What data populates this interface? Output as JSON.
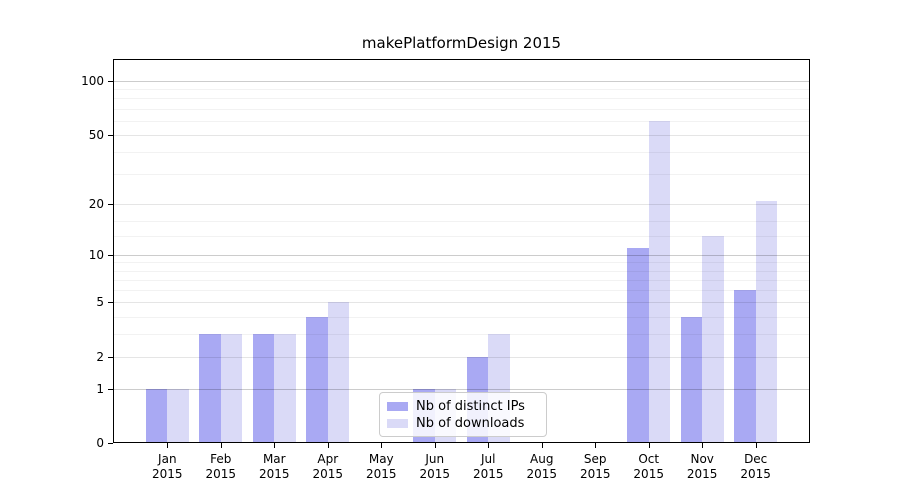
{
  "title": "makePlatformDesign 2015",
  "legend": {
    "items": [
      {
        "label": "Nb of distinct IPs",
        "color": "#a9a9f3"
      },
      {
        "label": "Nb of downloads",
        "color": "#dadaf7"
      }
    ]
  },
  "y_axis": {
    "tick_labels": [
      "100",
      "50",
      "20",
      "10",
      "5",
      "2",
      "1",
      "0"
    ]
  },
  "x_axis": {
    "labels": [
      {
        "month": "Jan",
        "year": "2015"
      },
      {
        "month": "Feb",
        "year": "2015"
      },
      {
        "month": "Mar",
        "year": "2015"
      },
      {
        "month": "Apr",
        "year": "2015"
      },
      {
        "month": "May",
        "year": "2015"
      },
      {
        "month": "Jun",
        "year": "2015"
      },
      {
        "month": "Jul",
        "year": "2015"
      },
      {
        "month": "Aug",
        "year": "2015"
      },
      {
        "month": "Sep",
        "year": "2015"
      },
      {
        "month": "Oct",
        "year": "2015"
      },
      {
        "month": "Nov",
        "year": "2015"
      },
      {
        "month": "Dec",
        "year": "2015"
      }
    ]
  },
  "chart_data": {
    "type": "bar",
    "title": "makePlatformDesign 2015",
    "categories": [
      "Jan 2015",
      "Feb 2015",
      "Mar 2015",
      "Apr 2015",
      "May 2015",
      "Jun 2015",
      "Jul 2015",
      "Aug 2015",
      "Sep 2015",
      "Oct 2015",
      "Nov 2015",
      "Dec 2015"
    ],
    "series": [
      {
        "name": "Nb of distinct IPs",
        "color": "#a9a9f3",
        "values": [
          1,
          3,
          3,
          4,
          0,
          1,
          2,
          0,
          0,
          11,
          4,
          6
        ]
      },
      {
        "name": "Nb of downloads",
        "color": "#dadaf7",
        "values": [
          1,
          3,
          3,
          5,
          0,
          1,
          3,
          0,
          0,
          60,
          13,
          21
        ]
      }
    ],
    "y_scale": "log10(1+x)",
    "y_major_ticks": [
      0,
      1,
      2,
      5,
      10,
      20,
      50,
      100
    ],
    "y_power_ticks": [
      1,
      10,
      100
    ],
    "y_minor_gridlines": [
      3,
      4,
      6,
      7,
      8,
      9,
      13,
      16,
      30,
      40,
      60,
      70,
      80,
      90
    ],
    "ylim": [
      0,
      133
    ],
    "grid": "horizontal",
    "legend_position": "inside-bottom-center",
    "bar_colors": {
      "distinct_ips": "#a9a9f3",
      "downloads": "#dadaf7"
    }
  }
}
